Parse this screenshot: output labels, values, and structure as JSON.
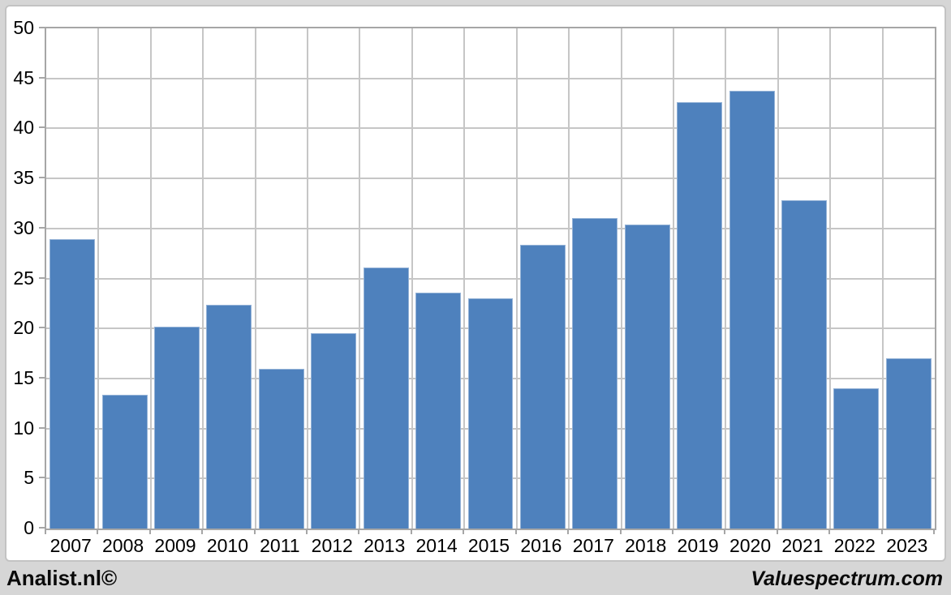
{
  "page": {
    "background_color": "#D6D6D6",
    "canvas_color": "#FFFFFF"
  },
  "footer": {
    "left_text": "Analist.nl©",
    "right_text": "Valuespectrum.com"
  },
  "chart_data": {
    "type": "bar",
    "title": "",
    "xlabel": "",
    "ylabel": "",
    "categories": [
      "2007",
      "2008",
      "2009",
      "2010",
      "2011",
      "2012",
      "2013",
      "2014",
      "2015",
      "2016",
      "2017",
      "2018",
      "2019",
      "2020",
      "2021",
      "2022",
      "2023"
    ],
    "values": [
      28.9,
      13.4,
      20.2,
      22.4,
      16.0,
      19.5,
      26.1,
      23.6,
      23.0,
      28.4,
      31.0,
      30.4,
      42.6,
      43.8,
      32.8,
      14.0,
      17.0
    ],
    "ylim": [
      0,
      50
    ],
    "ytick_step": 5,
    "ytick_labels": [
      "0",
      "5",
      "10",
      "15",
      "20",
      "25",
      "30",
      "35",
      "40",
      "45",
      "50"
    ],
    "grid": true,
    "legend_position": "none",
    "bar_color": "#4E81BD",
    "bar_border_color": "#95B3D7",
    "gridline_color": "#C6C6C6",
    "plot_border_color": "#A6A6A6",
    "tick_color": "#A6A6A6",
    "label_color": "#000000"
  }
}
